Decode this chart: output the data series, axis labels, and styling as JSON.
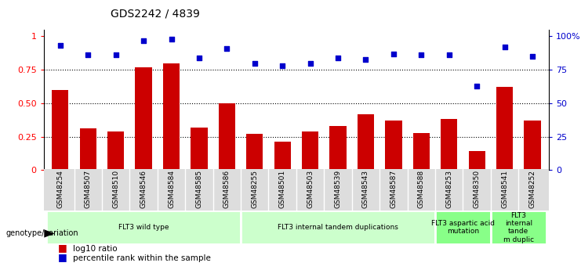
{
  "title": "GDS2242 / 4839",
  "samples": [
    "GSM48254",
    "GSM48507",
    "GSM48510",
    "GSM48546",
    "GSM48584",
    "GSM48585",
    "GSM48586",
    "GSM48255",
    "GSM48501",
    "GSM48503",
    "GSM48539",
    "GSM48543",
    "GSM48587",
    "GSM48588",
    "GSM48253",
    "GSM48350",
    "GSM48541",
    "GSM48252"
  ],
  "log10_ratio": [
    0.6,
    0.31,
    0.29,
    0.77,
    0.8,
    0.32,
    0.5,
    0.27,
    0.21,
    0.29,
    0.33,
    0.42,
    0.37,
    0.28,
    0.38,
    0.14,
    0.62,
    0.37
  ],
  "percentile_rank": [
    0.93,
    0.86,
    0.86,
    0.97,
    0.98,
    0.84,
    0.91,
    0.8,
    0.78,
    0.8,
    0.84,
    0.83,
    0.87,
    0.86,
    0.86,
    0.63,
    0.92,
    0.85
  ],
  "bar_color": "#cc0000",
  "dot_color": "#0000cc",
  "groups": [
    {
      "label": "FLT3 wild type",
      "start": 0,
      "end": 7,
      "color": "#ccffcc"
    },
    {
      "label": "FLT3 internal tandem duplications",
      "start": 7,
      "end": 14,
      "color": "#ccffcc"
    },
    {
      "label": "FLT3 aspartic acid\nmutation",
      "start": 14,
      "end": 16,
      "color": "#88ff88"
    },
    {
      "label": "FLT3\ninternal\ntande\nm duplic",
      "start": 16,
      "end": 18,
      "color": "#88ff88"
    }
  ],
  "yticks_left": [
    0,
    0.25,
    0.5,
    0.75,
    1.0
  ],
  "ytick_labels_left": [
    "0",
    "0.25",
    "0.50",
    "0.75",
    "1"
  ],
  "yticks_right": [
    0,
    25,
    50,
    75,
    100
  ],
  "ytick_labels_right": [
    "0",
    "25",
    "50",
    "75",
    "100%"
  ],
  "ylim": [
    0,
    1.05
  ],
  "background_color": "#ffffff"
}
